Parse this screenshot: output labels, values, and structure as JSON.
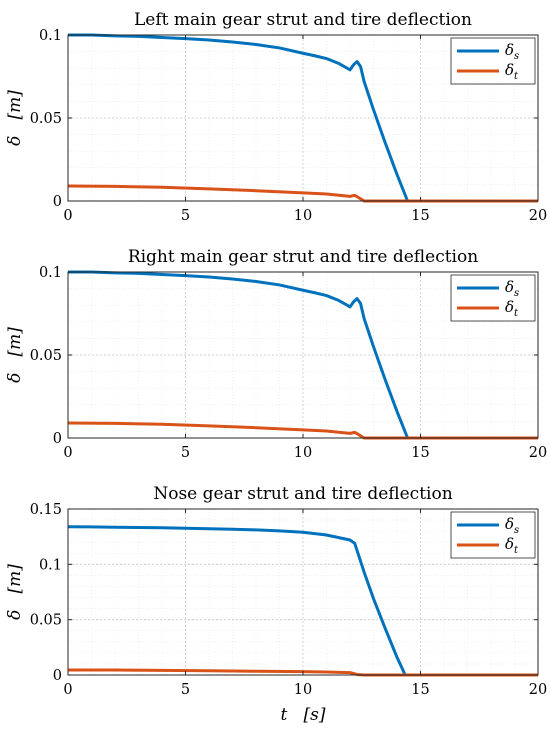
{
  "chart_data": [
    {
      "type": "line",
      "title": "Left main gear strut and tire deflection",
      "xlabel": "",
      "ylabel": "δ   [m]",
      "xlim": [
        0,
        20
      ],
      "ylim": [
        0,
        0.1
      ],
      "xticks": [
        0,
        5,
        10,
        15,
        20
      ],
      "xtick_labels": [
        "0",
        "5",
        "10",
        "15",
        "20"
      ],
      "yticks": [
        0,
        0.05,
        0.1
      ],
      "ytick_labels": [
        "0",
        "0.05",
        "0.1"
      ],
      "grid": true,
      "minor_grid": true,
      "legend_position": "top-right",
      "series": [
        {
          "name": "δs",
          "color": "#0072BD",
          "x": [
            0,
            1,
            2,
            3,
            4,
            5,
            6,
            7,
            8,
            9,
            10,
            10.5,
            11,
            11.5,
            12,
            12.15,
            12.3,
            12.45,
            12.6,
            13,
            13.5,
            14,
            14.45
          ],
          "y": [
            0.1,
            0.1,
            0.0995,
            0.0992,
            0.0985,
            0.0978,
            0.097,
            0.0958,
            0.0943,
            0.0922,
            0.089,
            0.0875,
            0.0858,
            0.083,
            0.079,
            0.082,
            0.084,
            0.081,
            0.072,
            0.055,
            0.035,
            0.016,
            0
          ]
        },
        {
          "name": "δt",
          "color": "#D95319",
          "x": [
            0,
            2,
            4,
            6,
            8,
            10,
            11,
            12,
            12.2,
            12.35,
            12.6,
            13,
            20
          ],
          "y": [
            0.009,
            0.0088,
            0.0083,
            0.0073,
            0.0062,
            0.0049,
            0.0042,
            0.0028,
            0.0034,
            0.0022,
            0,
            0,
            0
          ]
        }
      ]
    },
    {
      "type": "line",
      "title": "Right main gear strut and tire deflection",
      "xlabel": "",
      "ylabel": "δ   [m]",
      "xlim": [
        0,
        20
      ],
      "ylim": [
        0,
        0.1
      ],
      "xticks": [
        0,
        5,
        10,
        15,
        20
      ],
      "xtick_labels": [
        "0",
        "5",
        "10",
        "15",
        "20"
      ],
      "yticks": [
        0,
        0.05,
        0.1
      ],
      "ytick_labels": [
        "0",
        "0.05",
        "0.1"
      ],
      "grid": true,
      "minor_grid": true,
      "legend_position": "top-right",
      "series": [
        {
          "name": "δs",
          "color": "#0072BD",
          "x": [
            0,
            1,
            2,
            3,
            4,
            5,
            6,
            7,
            8,
            9,
            10,
            10.5,
            11,
            11.5,
            12,
            12.15,
            12.3,
            12.45,
            12.6,
            13,
            13.5,
            14,
            14.45
          ],
          "y": [
            0.1,
            0.1,
            0.0995,
            0.0992,
            0.0985,
            0.0978,
            0.097,
            0.0958,
            0.0943,
            0.0922,
            0.089,
            0.0875,
            0.0858,
            0.083,
            0.079,
            0.082,
            0.084,
            0.081,
            0.072,
            0.055,
            0.035,
            0.016,
            0
          ]
        },
        {
          "name": "δt",
          "color": "#D95319",
          "x": [
            0,
            2,
            4,
            6,
            8,
            10,
            11,
            12,
            12.2,
            12.35,
            12.6,
            13,
            20
          ],
          "y": [
            0.009,
            0.0088,
            0.0083,
            0.0073,
            0.0062,
            0.0049,
            0.0042,
            0.0028,
            0.0034,
            0.0022,
            0,
            0,
            0
          ]
        }
      ]
    },
    {
      "type": "line",
      "title": "Nose gear strut and tire deflection",
      "xlabel": "t   [s]",
      "ylabel": "δ   [m]",
      "xlim": [
        0,
        20
      ],
      "ylim": [
        0,
        0.15
      ],
      "xticks": [
        0,
        5,
        10,
        15,
        20
      ],
      "xtick_labels": [
        "0",
        "5",
        "10",
        "15",
        "20"
      ],
      "yticks": [
        0,
        0.05,
        0.1,
        0.15
      ],
      "ytick_labels": [
        "0",
        "0.05",
        "0.1",
        "0.15"
      ],
      "grid": true,
      "minor_grid": true,
      "legend_position": "top-right",
      "series": [
        {
          "name": "δs",
          "color": "#0072BD",
          "x": [
            0,
            1,
            2,
            3,
            4,
            5,
            6,
            7,
            8,
            9,
            10,
            11,
            12,
            12.2,
            12.6,
            13,
            13.5,
            14,
            14.35
          ],
          "y": [
            0.134,
            0.1338,
            0.1335,
            0.1333,
            0.133,
            0.1326,
            0.1322,
            0.1317,
            0.1311,
            0.1302,
            0.129,
            0.1265,
            0.122,
            0.119,
            0.093,
            0.069,
            0.042,
            0.016,
            0
          ]
        },
        {
          "name": "δt",
          "color": "#D95319",
          "x": [
            0,
            2,
            4,
            6,
            8,
            10,
            11,
            12,
            12.3,
            12.6,
            20
          ],
          "y": [
            0.0045,
            0.0045,
            0.0042,
            0.0038,
            0.0034,
            0.003,
            0.0027,
            0.0022,
            0.0005,
            0,
            0
          ]
        }
      ]
    }
  ]
}
